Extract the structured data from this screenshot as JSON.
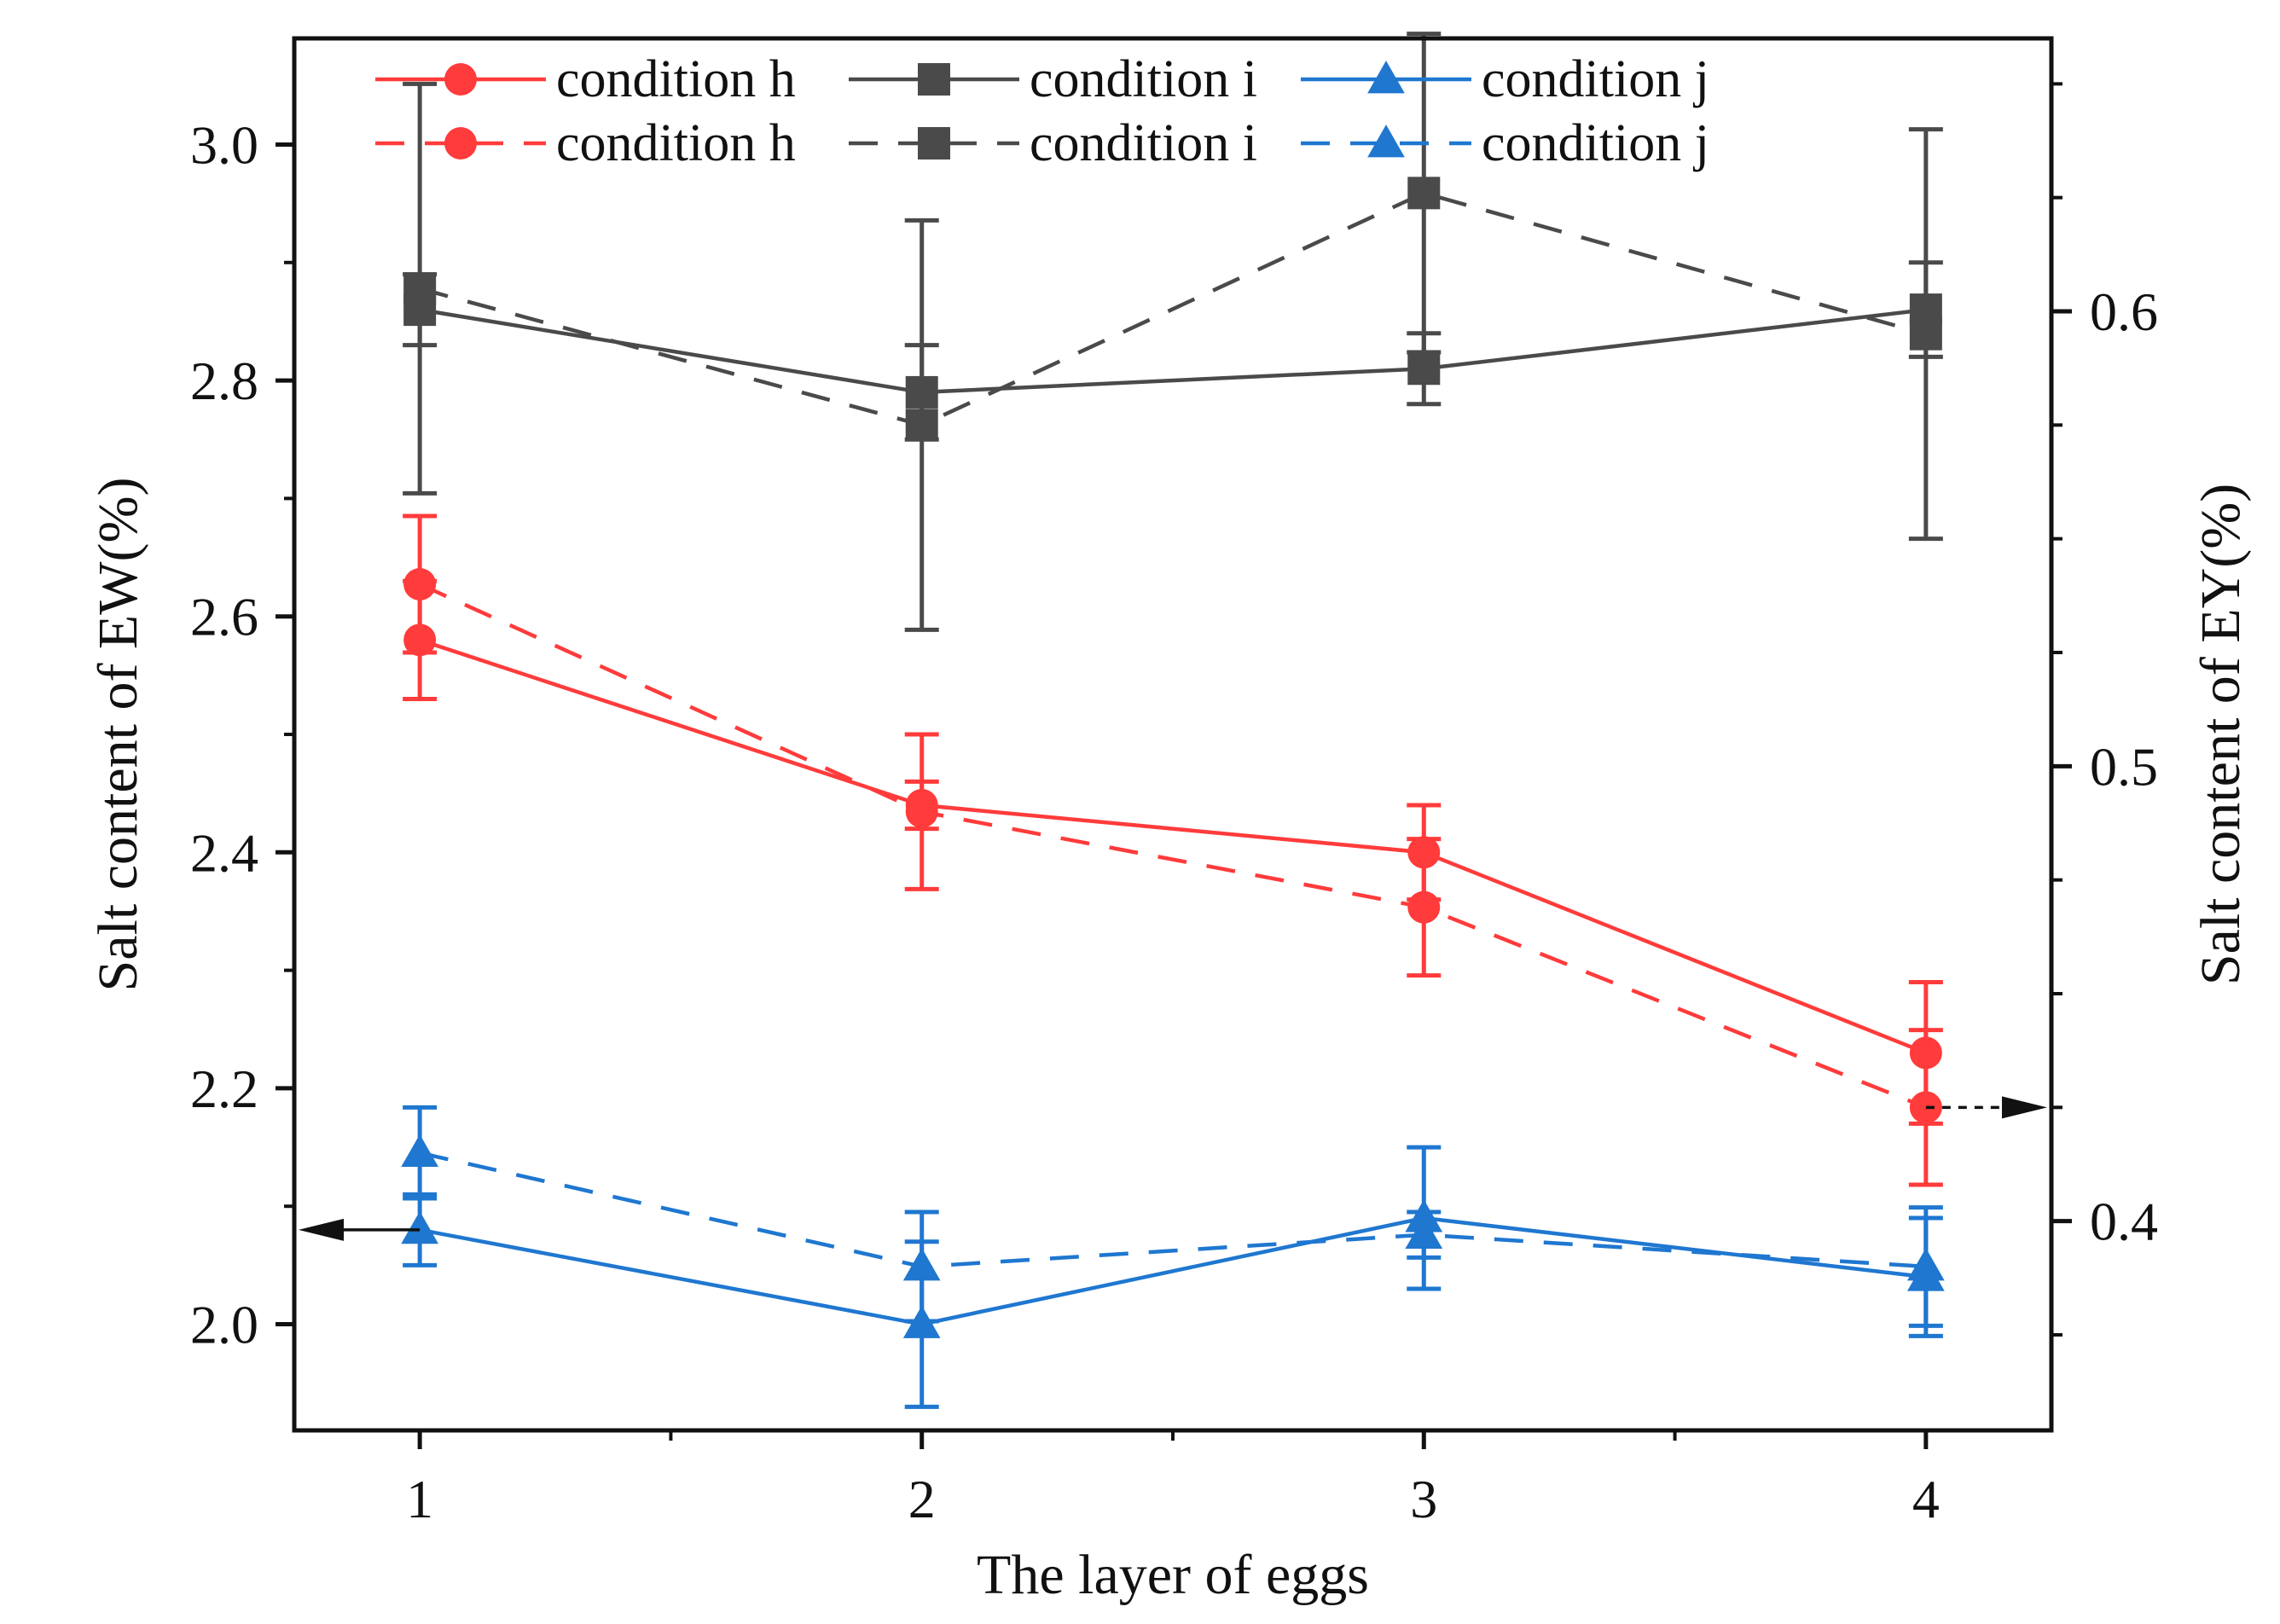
{
  "chart_data": {
    "type": "line",
    "xlabel": "The layer of eggs",
    "ylabel_left": "Salt content of EW(%)",
    "ylabel_right": "Salt content of EY(%)",
    "x": [
      1,
      2,
      3,
      4
    ],
    "xlim": [
      0.75,
      4.25
    ],
    "xticks": [
      "1",
      "2",
      "3",
      "4"
    ],
    "ylim_left": [
      1.91,
      3.09
    ],
    "yticks_left": [
      "2.0",
      "2.2",
      "2.4",
      "2.6",
      "2.8",
      "3.0"
    ],
    "ylim_right": [
      0.354,
      0.66
    ],
    "yticks_right": [
      "0.4",
      "0.5",
      "0.6"
    ],
    "series": [
      {
        "name": "condition h",
        "axis": "left",
        "style": "solid",
        "marker": "circle",
        "color": "#ff3b3b",
        "values": [
          2.58,
          2.44,
          2.4,
          2.23
        ],
        "err": [
          0.05,
          0.02,
          0.04,
          0.06
        ]
      },
      {
        "name": "condition i",
        "axis": "left",
        "style": "solid",
        "marker": "square",
        "color": "#4a4a4a",
        "values": [
          2.86,
          2.79,
          2.81,
          2.86
        ],
        "err": [
          0.03,
          0.04,
          0.03,
          0.04
        ]
      },
      {
        "name": "condition j",
        "axis": "left",
        "style": "solid",
        "marker": "triangle",
        "color": "#1f77d0",
        "values": [
          2.08,
          2.0,
          2.09,
          2.04
        ],
        "err": [
          0.03,
          0.07,
          0.06,
          0.05
        ]
      },
      {
        "name": "condition h",
        "axis": "right",
        "style": "dashed",
        "marker": "circle",
        "color": "#ff3b3b",
        "values": [
          0.54,
          0.49,
          0.469,
          0.425
        ],
        "err": [
          0.015,
          0.017,
          0.015,
          0.017
        ]
      },
      {
        "name": "condition i",
        "axis": "right",
        "style": "dashed",
        "marker": "square",
        "color": "#4a4a4a",
        "values": [
          0.605,
          0.575,
          0.626,
          0.595
        ],
        "err": [
          0.045,
          0.045,
          0.035,
          0.045
        ]
      },
      {
        "name": "condition j",
        "axis": "right",
        "style": "dashed",
        "marker": "triangle",
        "color": "#1f77d0",
        "values": [
          0.415,
          0.39,
          0.397,
          0.39
        ],
        "err": [
          0.01,
          0.012,
          0.005,
          0.013
        ]
      }
    ],
    "legend_position": "top-center"
  }
}
